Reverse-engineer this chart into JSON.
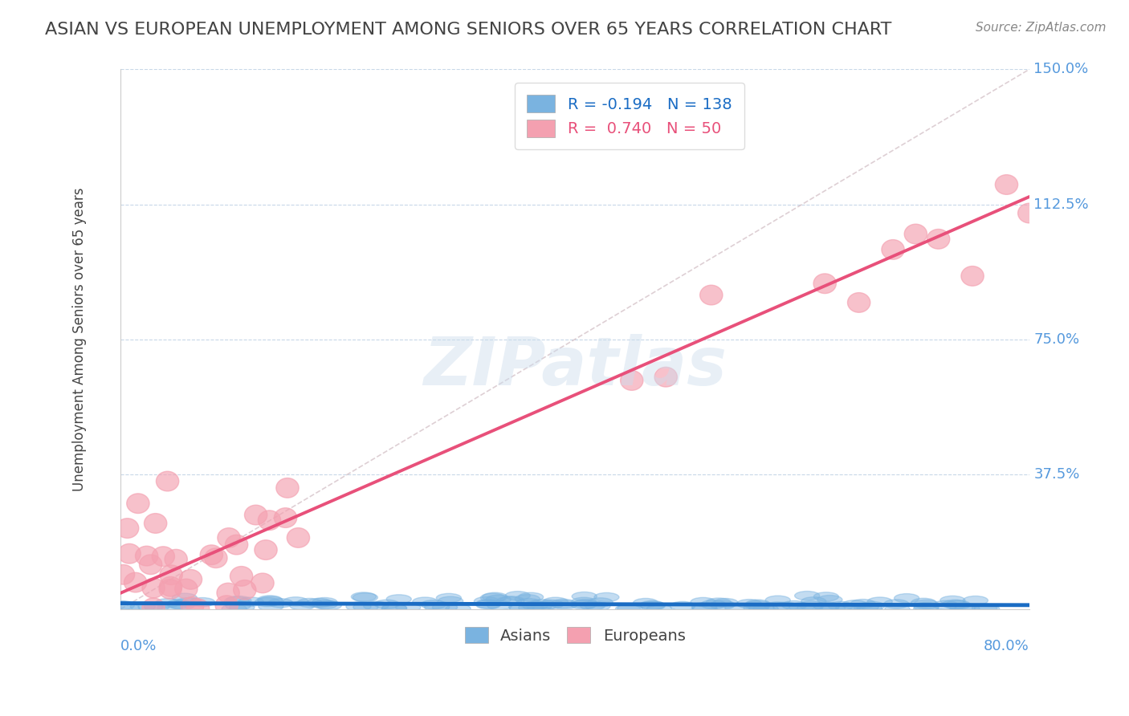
{
  "title": "ASIAN VS EUROPEAN UNEMPLOYMENT AMONG SENIORS OVER 65 YEARS CORRELATION CHART",
  "source": "Source: ZipAtlas.com",
  "xlabel_bottom_left": "0.0%",
  "xlabel_bottom_right": "80.0%",
  "ylabel": "Unemployment Among Seniors over 65 years",
  "yticks": [
    0.0,
    0.375,
    0.75,
    1.125,
    1.5
  ],
  "ytick_labels": [
    "",
    "37.5%",
    "75.0%",
    "112.5%",
    "150.0%"
  ],
  "xlim": [
    0.0,
    0.8
  ],
  "ylim": [
    0.0,
    1.5
  ],
  "asian_color": "#7ab3e0",
  "european_color": "#f4a0b0",
  "asian_trend_color": "#1a6cc4",
  "european_trend_color": "#e8507a",
  "diag_line_color": "#c8b0b8",
  "grid_color": "#c8d8e8",
  "watermark": "ZIPatlas",
  "legend_asian_label": "R = -0.194   N = 138",
  "legend_european_label": "R =  0.740   N = 50",
  "legend_bottom_asian": "Asians",
  "legend_bottom_european": "Europeans",
  "asian_R": -0.194,
  "asian_N": 138,
  "european_R": 0.74,
  "european_N": 50,
  "title_color": "#444444",
  "axis_label_color": "#5599dd",
  "tick_label_color": "#5599dd",
  "background_color": "#ffffff",
  "euro_trend_x0": 0.0,
  "euro_trend_y0": 0.0,
  "euro_trend_x1": 0.8,
  "euro_trend_y1": 1.2,
  "asian_trend_x0": 0.0,
  "asian_trend_y0": 0.026,
  "asian_trend_x1": 0.8,
  "asian_trend_y1": 0.018
}
